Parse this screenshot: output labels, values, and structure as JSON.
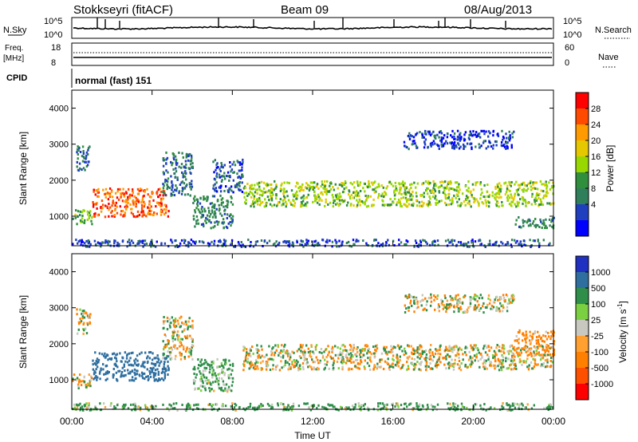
{
  "header": {
    "station": "Stokkseyri (fitACF)",
    "beam": "Beam 09",
    "date": "08/Aug/2013"
  },
  "top_panels": {
    "nsky_label": "N.Sky",
    "nsky_ticks": [
      "10^5",
      "10^0"
    ],
    "nsearch_label": "N.Search",
    "nsearch_ticks": [
      "10^5",
      "10^0"
    ],
    "freq_label_1": "Freq.",
    "freq_label_2": "[MHz]",
    "freq_ticks": [
      "18",
      "8"
    ],
    "nave_label": "Nave",
    "nave_ticks": [
      "60",
      "0"
    ],
    "cpid_label": "CPID",
    "cpid_value": "normal (fast) 151"
  },
  "chart_data": [
    {
      "type": "heatmap",
      "name": "power",
      "ylabel": "Slant Range [km]",
      "yticks": [
        "4000",
        "3000",
        "2000",
        "1000"
      ],
      "ylim": [
        180,
        4500
      ],
      "xlim": [
        0,
        24
      ],
      "colorbar": {
        "label": "Power [dB]",
        "ticks": [
          "28",
          "24",
          "20",
          "16",
          "12",
          "8",
          "4"
        ],
        "colors": [
          "#ff0000",
          "#ff4a00",
          "#ff9a00",
          "#e6c800",
          "#98d800",
          "#2f8f3c",
          "#2f7f5a",
          "#1f3fbf",
          "#0000ff"
        ]
      },
      "bands": [
        {
          "t": [
            0.2,
            0.9
          ],
          "r": [
            2300,
            3000
          ],
          "db": 8
        },
        {
          "t": [
            0.0,
            1.0
          ],
          "r": [
            800,
            1200
          ],
          "db": 14
        },
        {
          "t": [
            1.0,
            4.8
          ],
          "r": [
            1000,
            1800
          ],
          "db": 26
        },
        {
          "t": [
            4.5,
            6.0
          ],
          "r": [
            1600,
            2800
          ],
          "db": 8
        },
        {
          "t": [
            6.0,
            8.0
          ],
          "r": [
            700,
            1600
          ],
          "db": 10
        },
        {
          "t": [
            7.0,
            8.5
          ],
          "r": [
            1700,
            2600
          ],
          "db": 6
        },
        {
          "t": [
            8.5,
            24.0
          ],
          "r": [
            1300,
            2000
          ],
          "db": 16
        },
        {
          "t": [
            16.5,
            22.0
          ],
          "r": [
            2900,
            3400
          ],
          "db": 5
        },
        {
          "t": [
            22.0,
            24.0
          ],
          "r": [
            700,
            1000
          ],
          "db": 10
        },
        {
          "t": [
            0.0,
            24.0
          ],
          "r": [
            180,
            380
          ],
          "db": 6
        }
      ]
    },
    {
      "type": "heatmap",
      "name": "velocity",
      "ylabel": "Slant Range [km]",
      "yticks": [
        "4000",
        "3000",
        "2000",
        "1000"
      ],
      "ylim": [
        180,
        4500
      ],
      "xlim": [
        0,
        24
      ],
      "xlabel": "Time UT",
      "xticks": [
        "00:00",
        "04:00",
        "08:00",
        "12:00",
        "16:00",
        "20:00",
        "00:00"
      ],
      "colorbar": {
        "label": "Velocity [m s",
        "label_sup": "-1",
        "label_end": "]",
        "ticks": [
          "1000",
          "500",
          "100",
          "25",
          "-25",
          "-100",
          "-500",
          "-1000"
        ],
        "colors": [
          "#2030c0",
          "#2f6fa0",
          "#2f8f4a",
          "#7ad040",
          "#c8c8c0",
          "#ffa030",
          "#ff8000",
          "#ff5000",
          "#ff0000"
        ]
      },
      "bands": [
        {
          "t": [
            0.2,
            0.9
          ],
          "r": [
            2300,
            3000
          ],
          "v": 0
        },
        {
          "t": [
            0.0,
            1.0
          ],
          "r": [
            800,
            1200
          ],
          "v": 0
        },
        {
          "t": [
            1.0,
            4.8
          ],
          "r": [
            1000,
            1800
          ],
          "v": 600
        },
        {
          "t": [
            4.5,
            6.0
          ],
          "r": [
            1600,
            2800
          ],
          "v": 0
        },
        {
          "t": [
            6.0,
            8.0
          ],
          "r": [
            700,
            1600
          ],
          "v": 120
        },
        {
          "t": [
            8.5,
            24.0
          ],
          "r": [
            1300,
            2000
          ],
          "v": 0
        },
        {
          "t": [
            16.5,
            22.0
          ],
          "r": [
            2900,
            3400
          ],
          "v": 0
        },
        {
          "t": [
            22.0,
            24.0
          ],
          "r": [
            1700,
            2400
          ],
          "v": -150
        },
        {
          "t": [
            0.0,
            24.0
          ],
          "r": [
            180,
            380
          ],
          "v": 110
        }
      ]
    }
  ]
}
